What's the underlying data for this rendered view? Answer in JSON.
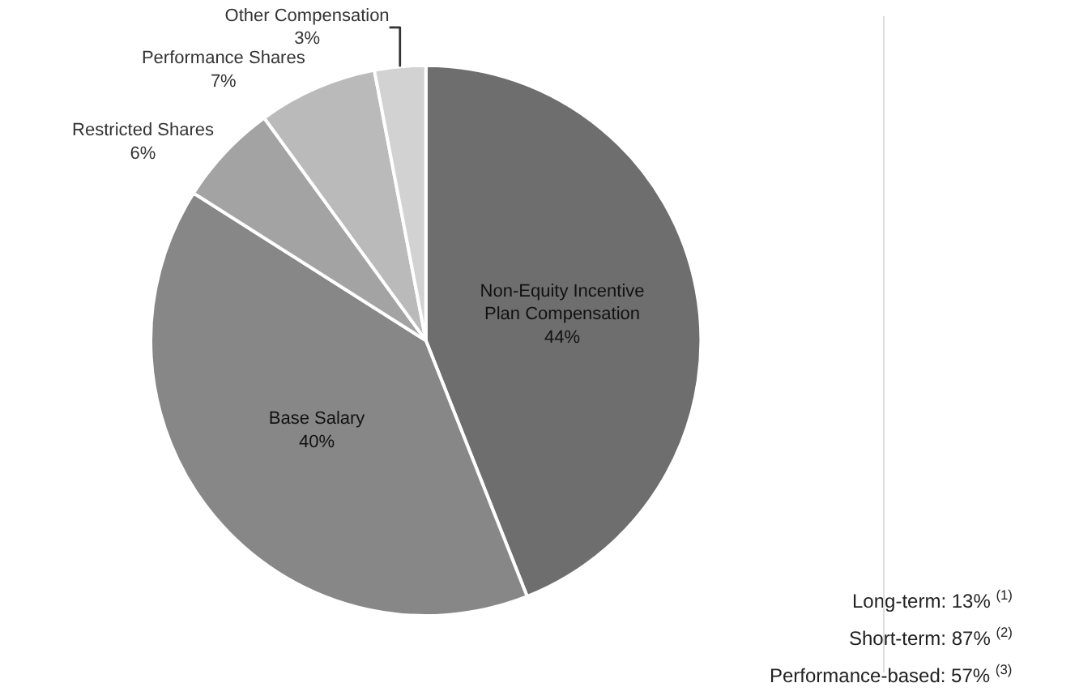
{
  "chart_data": {
    "type": "pie",
    "categories": [
      "Non-Equity Incentive Plan Compensation",
      "Base Salary",
      "Restricted Shares",
      "Performance Shares",
      "Other Compensation"
    ],
    "values": [
      44,
      40,
      6,
      7,
      3
    ],
    "value_labels": [
      "44%",
      "40%",
      "6%",
      "7%",
      "3%"
    ],
    "colors": [
      "#6e6e6e",
      "#878787",
      "#a3a3a3",
      "#bababa",
      "#d2d2d2"
    ],
    "legend": false,
    "annotations": [
      "Long-term: 13% $^{(1)}$",
      "Short-term: 87% $^{(2)}$",
      "Performance-based: 57% $^{(3)}$"
    ]
  }
}
